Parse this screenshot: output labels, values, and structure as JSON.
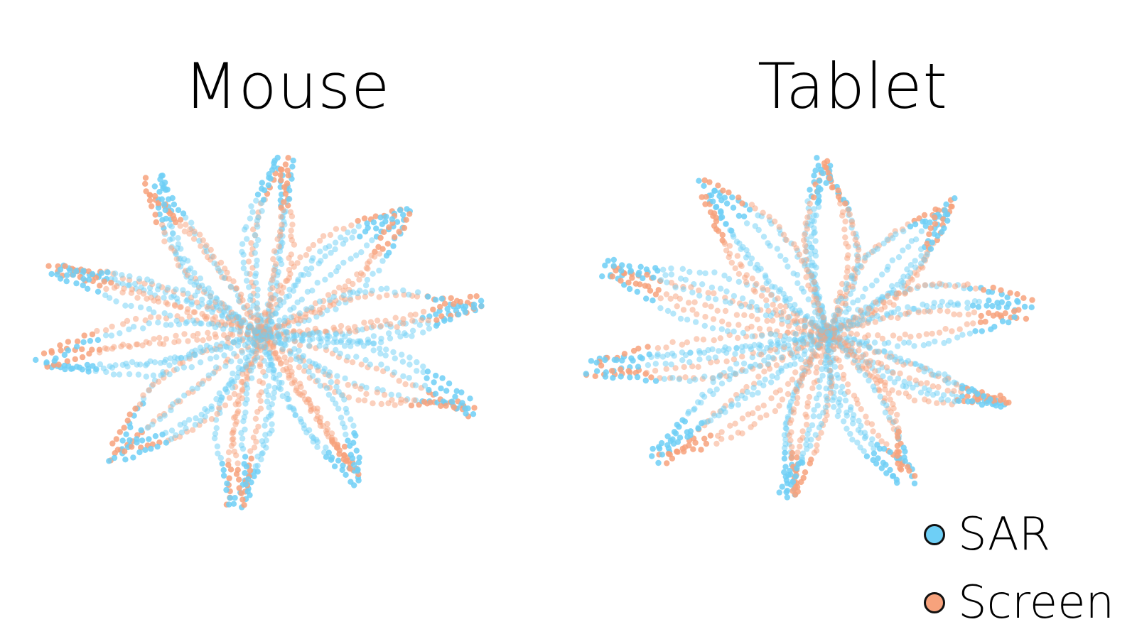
{
  "chart_data": [
    {
      "type": "scatter",
      "title": "Mouse",
      "legend_position": "bottom-right",
      "grid": false,
      "axes_visible": false,
      "series": [
        {
          "name": "SAR",
          "color": "#6ecff6"
        },
        {
          "name": "Screen",
          "color": "#f7a27c"
        }
      ]
    },
    {
      "type": "scatter",
      "title": "Tablet",
      "legend_position": "bottom-right",
      "grid": false,
      "axes_visible": false,
      "series": [
        {
          "name": "SAR",
          "color": "#6ecff6"
        },
        {
          "name": "Screen",
          "color": "#f7a27c"
        }
      ]
    }
  ],
  "legend": {
    "items": [
      {
        "label": "SAR",
        "color": "#6ecff6"
      },
      {
        "label": "Screen",
        "color": "#f7a27c"
      }
    ]
  }
}
